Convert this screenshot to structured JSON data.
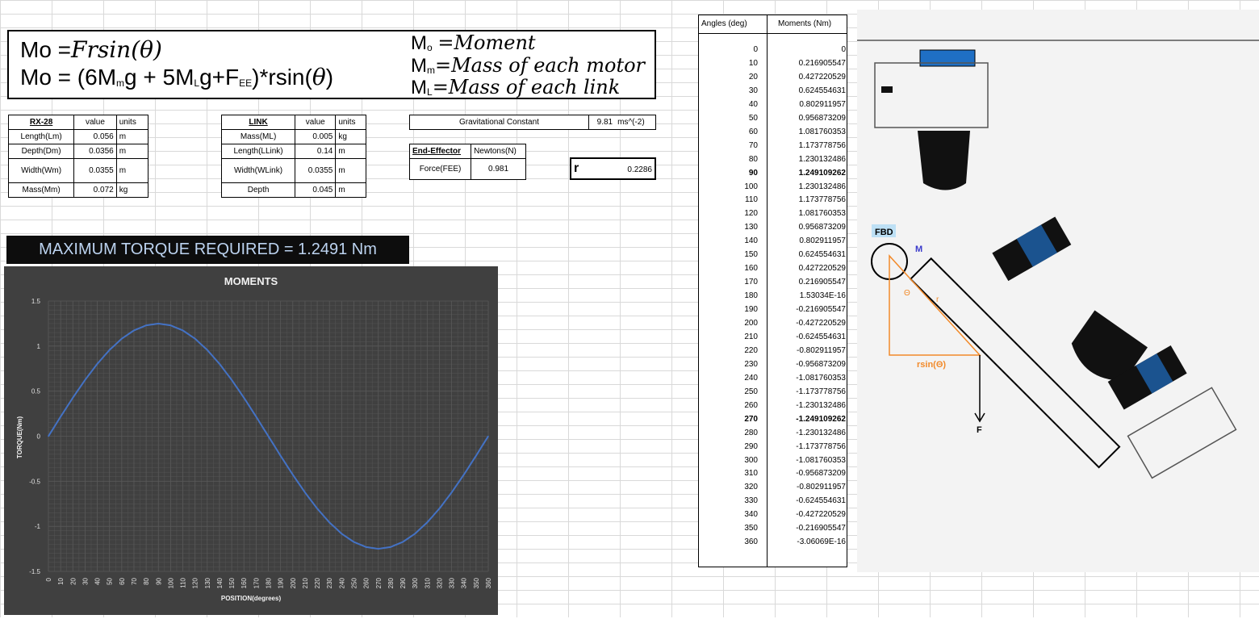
{
  "equations": {
    "line1_prefix": "Mo =",
    "line1_formula": "Frsin(θ)",
    "line2_a": "Mo = (6M",
    "line2_sub_m": "m",
    "line2_b": "g + 5M",
    "line2_sub_l": "L",
    "line2_c": "g+F",
    "line2_sub_ee": "EE",
    "line2_d": ")*rsin(",
    "line2_theta": "θ",
    "line2_e": ")",
    "def1_sym": "M",
    "def1_sub": "o",
    "def1_text": "=Moment",
    "def2_sym": "M",
    "def2_sub": "m",
    "def2_text": "=Mass of each motor",
    "def3_sym": "M",
    "def3_sub": "L",
    "def3_text": "=Mass of each link"
  },
  "rx28": {
    "header": [
      "RX-28",
      "value",
      "units"
    ],
    "rows": [
      [
        "Length(Lm)",
        "0.056",
        "m"
      ],
      [
        "Depth(Dm)",
        "0.0356",
        "m"
      ],
      [
        "Width(Wm)",
        "0.0355",
        "m"
      ],
      [
        "Mass(Mm)",
        "0.072",
        "kg"
      ]
    ]
  },
  "link": {
    "header": [
      "LINK",
      "value",
      "units"
    ],
    "rows": [
      [
        "Mass(ML)",
        "0.005",
        "kg"
      ],
      [
        "Length(LLink)",
        "0.14",
        "m"
      ],
      [
        "Width(WLink)",
        "0.0355",
        "m"
      ],
      [
        "Depth",
        "0.045",
        "m"
      ]
    ]
  },
  "gravity": {
    "label": "Gravitational Constant",
    "value": "9.81",
    "units": "ms^(-2)"
  },
  "end_effector": {
    "header": "End-Effector",
    "units": "Newtons(N)",
    "label": "Force(FEE)",
    "value": "0.981"
  },
  "radius": {
    "label": "r",
    "value": "0.2286"
  },
  "max_torque": "MAXIMUM TORQUE REQUIRED = 1.2491 Nm",
  "angles_table": {
    "header_angle": "Angles (deg)",
    "header_moment": "Moments (Nm)",
    "rows": [
      [
        "0",
        "0"
      ],
      [
        "10",
        "0.216905547"
      ],
      [
        "20",
        "0.427220529"
      ],
      [
        "30",
        "0.624554631"
      ],
      [
        "40",
        "0.802911957"
      ],
      [
        "50",
        "0.956873209"
      ],
      [
        "60",
        "1.081760353"
      ],
      [
        "70",
        "1.173778756"
      ],
      [
        "80",
        "1.230132486"
      ],
      [
        "90",
        "1.249109262"
      ],
      [
        "100",
        "1.230132486"
      ],
      [
        "110",
        "1.173778756"
      ],
      [
        "120",
        "1.081760353"
      ],
      [
        "130",
        "0.956873209"
      ],
      [
        "140",
        "0.802911957"
      ],
      [
        "150",
        "0.624554631"
      ],
      [
        "160",
        "0.427220529"
      ],
      [
        "170",
        "0.216905547"
      ],
      [
        "180",
        "1.53034E-16"
      ],
      [
        "190",
        "-0.216905547"
      ],
      [
        "200",
        "-0.427220529"
      ],
      [
        "210",
        "-0.624554631"
      ],
      [
        "220",
        "-0.802911957"
      ],
      [
        "230",
        "-0.956873209"
      ],
      [
        "240",
        "-1.081760353"
      ],
      [
        "250",
        "-1.173778756"
      ],
      [
        "260",
        "-1.230132486"
      ],
      [
        "270",
        "-1.249109262"
      ],
      [
        "280",
        "-1.230132486"
      ],
      [
        "290",
        "-1.173778756"
      ],
      [
        "300",
        "-1.081760353"
      ],
      [
        "310",
        "-0.956873209"
      ],
      [
        "320",
        "-0.802911957"
      ],
      [
        "330",
        "-0.624554631"
      ],
      [
        "340",
        "-0.427220529"
      ],
      [
        "350",
        "-0.216905547"
      ],
      [
        "360",
        "-3.06069E-16"
      ]
    ],
    "bold_rows": [
      9,
      27
    ]
  },
  "diagram_labels": {
    "fbd": "FBD",
    "m": "M",
    "r": "r",
    "theta": "Θ",
    "rsin": "rsin(Θ)",
    "f": "F"
  },
  "colors": {
    "chart_bg": "#404040",
    "line": "#4472c4",
    "grid": "#595959",
    "title_bar_text": "#bcd3f0",
    "blue_part": "#1f6fc4"
  },
  "chart_data": {
    "type": "line",
    "title": "MOMENTS",
    "xlabel": "POSITION(degrees)",
    "ylabel": "TORQUE(Nm)",
    "xlim": [
      0,
      360
    ],
    "ylim": [
      -1.5,
      1.5
    ],
    "yticks": [
      "1.5",
      "1",
      "0.5",
      "0",
      "-0.5",
      "-1",
      "-1.5"
    ],
    "categories": [
      "0",
      "10",
      "20",
      "30",
      "40",
      "50",
      "60",
      "70",
      "80",
      "90",
      "100",
      "110",
      "120",
      "130",
      "140",
      "150",
      "160",
      "170",
      "180",
      "190",
      "200",
      "210",
      "220",
      "230",
      "240",
      "250",
      "260",
      "270",
      "280",
      "290",
      "300",
      "310",
      "320",
      "330",
      "340",
      "350",
      "360"
    ],
    "values": [
      0,
      0.2169,
      0.4272,
      0.6246,
      0.8029,
      0.9569,
      1.0818,
      1.1738,
      1.2301,
      1.2491,
      1.2301,
      1.1738,
      1.0818,
      0.9569,
      0.8029,
      0.6246,
      0.4272,
      0.2169,
      0,
      -0.2169,
      -0.4272,
      -0.6246,
      -0.8029,
      -0.9569,
      -1.0818,
      -1.1738,
      -1.2301,
      -1.2491,
      -1.2301,
      -1.1738,
      -1.0818,
      -0.9569,
      -0.8029,
      -0.6246,
      -0.4272,
      -0.2169,
      0
    ],
    "grid": true
  }
}
